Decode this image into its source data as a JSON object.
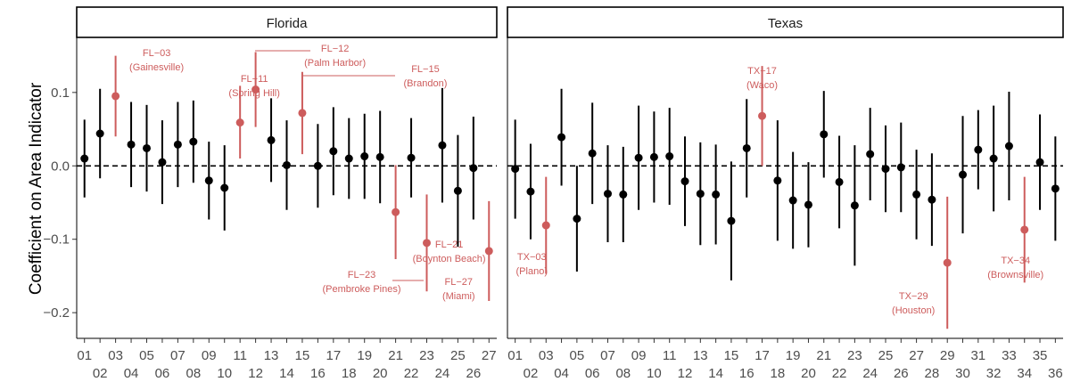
{
  "chart_data": {
    "type": "scatter",
    "ylabel": "Coefficient on Area Indicator",
    "xlabel": "",
    "ylim": [
      -0.235,
      0.175
    ],
    "y_ticks": [
      {
        "value": 0.1,
        "label": "0.1"
      },
      {
        "value": 0.0,
        "label": "0.0"
      },
      {
        "value": -0.1,
        "label": "-0.1"
      },
      {
        "value": -0.2,
        "label": "-0.2"
      }
    ],
    "reference_line": 0,
    "highlight_color": "#cd5c5c",
    "default_color": "#000000",
    "panels": [
      {
        "name": "Florida",
        "xlim": [
          0.5,
          27.5
        ],
        "points": [
          {
            "district": "01",
            "x": 1,
            "estimate": 0.01,
            "lower": -0.043,
            "upper": 0.063,
            "highlight": false
          },
          {
            "district": "02",
            "x": 2,
            "estimate": 0.044,
            "lower": -0.017,
            "upper": 0.105,
            "highlight": false
          },
          {
            "district": "03",
            "x": 3,
            "estimate": 0.095,
            "lower": 0.04,
            "upper": 0.15,
            "highlight": true,
            "label_lines": [
              "FL−03",
              "(Gainesville)"
            ]
          },
          {
            "district": "04",
            "x": 4,
            "estimate": 0.029,
            "lower": -0.029,
            "upper": 0.087,
            "highlight": false
          },
          {
            "district": "05",
            "x": 5,
            "estimate": 0.024,
            "lower": -0.035,
            "upper": 0.083,
            "highlight": false
          },
          {
            "district": "06",
            "x": 6,
            "estimate": 0.005,
            "lower": -0.052,
            "upper": 0.062,
            "highlight": false
          },
          {
            "district": "07",
            "x": 7,
            "estimate": 0.029,
            "lower": -0.029,
            "upper": 0.087,
            "highlight": false
          },
          {
            "district": "08",
            "x": 8,
            "estimate": 0.033,
            "lower": -0.023,
            "upper": 0.089,
            "highlight": false
          },
          {
            "district": "09",
            "x": 9,
            "estimate": -0.02,
            "lower": -0.073,
            "upper": 0.033,
            "highlight": false
          },
          {
            "district": "10",
            "x": 10,
            "estimate": -0.03,
            "lower": -0.088,
            "upper": 0.028,
            "highlight": false
          },
          {
            "district": "11",
            "x": 11,
            "estimate": 0.059,
            "lower": 0.01,
            "upper": 0.109,
            "highlight": true,
            "label_lines": [
              "FL−11",
              "(Spring Hill)"
            ]
          },
          {
            "district": "12",
            "x": 12,
            "estimate": 0.104,
            "lower": 0.053,
            "upper": 0.155,
            "highlight": true,
            "label_lines": [
              "FL−12",
              "(Palm Harbor)"
            ]
          },
          {
            "district": "13",
            "x": 13,
            "estimate": 0.035,
            "lower": -0.022,
            "upper": 0.092,
            "highlight": false
          },
          {
            "district": "14",
            "x": 14,
            "estimate": 0.001,
            "lower": -0.06,
            "upper": 0.062,
            "highlight": false
          },
          {
            "district": "15",
            "x": 15,
            "estimate": 0.072,
            "lower": 0.016,
            "upper": 0.128,
            "highlight": true,
            "label_lines": [
              "FL−15",
              "(Brandon)"
            ]
          },
          {
            "district": "16",
            "x": 16,
            "estimate": 0.0,
            "lower": -0.057,
            "upper": 0.057,
            "highlight": false
          },
          {
            "district": "17",
            "x": 17,
            "estimate": 0.02,
            "lower": -0.04,
            "upper": 0.08,
            "highlight": false
          },
          {
            "district": "18",
            "x": 18,
            "estimate": 0.01,
            "lower": -0.045,
            "upper": 0.065,
            "highlight": false
          },
          {
            "district": "19",
            "x": 19,
            "estimate": 0.013,
            "lower": -0.045,
            "upper": 0.071,
            "highlight": false
          },
          {
            "district": "20",
            "x": 20,
            "estimate": 0.012,
            "lower": -0.051,
            "upper": 0.075,
            "highlight": false
          },
          {
            "district": "21",
            "x": 21,
            "estimate": -0.063,
            "lower": -0.127,
            "upper": 0.001,
            "highlight": true,
            "label_lines": [
              "FL−21",
              "(Boynton Beach)"
            ]
          },
          {
            "district": "22",
            "x": 22,
            "estimate": 0.011,
            "lower": -0.043,
            "upper": 0.065,
            "highlight": false
          },
          {
            "district": "23",
            "x": 23,
            "estimate": -0.105,
            "lower": -0.171,
            "upper": -0.039,
            "highlight": true,
            "label_lines": [
              "FL−23",
              "(Pembroke Pines)"
            ]
          },
          {
            "district": "24",
            "x": 24,
            "estimate": 0.028,
            "lower": -0.05,
            "upper": 0.106,
            "highlight": false
          },
          {
            "district": "25",
            "x": 25,
            "estimate": -0.034,
            "lower": -0.11,
            "upper": 0.042,
            "highlight": false
          },
          {
            "district": "26",
            "x": 26,
            "estimate": -0.003,
            "lower": -0.073,
            "upper": 0.067,
            "highlight": false
          },
          {
            "district": "27",
            "x": 27,
            "estimate": -0.116,
            "lower": -0.184,
            "upper": -0.048,
            "highlight": true,
            "label_lines": [
              "FL−27",
              "(Miami)"
            ]
          }
        ]
      },
      {
        "name": "Texas",
        "xlim": [
          0.5,
          36.5
        ],
        "points": [
          {
            "district": "01",
            "x": 1,
            "estimate": -0.004,
            "lower": -0.072,
            "upper": 0.063,
            "highlight": false
          },
          {
            "district": "02",
            "x": 2,
            "estimate": -0.035,
            "lower": -0.1,
            "upper": 0.03,
            "highlight": false
          },
          {
            "district": "03",
            "x": 3,
            "estimate": -0.081,
            "lower": -0.147,
            "upper": -0.015,
            "highlight": true,
            "label_lines": [
              "TX−03",
              "(Plano)"
            ]
          },
          {
            "district": "04",
            "x": 4,
            "estimate": 0.039,
            "lower": -0.027,
            "upper": 0.105,
            "highlight": false
          },
          {
            "district": "05",
            "x": 5,
            "estimate": -0.072,
            "lower": -0.144,
            "upper": 0.0,
            "highlight": false
          },
          {
            "district": "06",
            "x": 6,
            "estimate": 0.017,
            "lower": -0.052,
            "upper": 0.086,
            "highlight": false
          },
          {
            "district": "07",
            "x": 7,
            "estimate": -0.038,
            "lower": -0.104,
            "upper": 0.028,
            "highlight": false
          },
          {
            "district": "08",
            "x": 8,
            "estimate": -0.039,
            "lower": -0.104,
            "upper": 0.026,
            "highlight": false
          },
          {
            "district": "09",
            "x": 9,
            "estimate": 0.011,
            "lower": -0.06,
            "upper": 0.082,
            "highlight": false
          },
          {
            "district": "10",
            "x": 10,
            "estimate": 0.012,
            "lower": -0.05,
            "upper": 0.074,
            "highlight": false
          },
          {
            "district": "11",
            "x": 11,
            "estimate": 0.013,
            "lower": -0.053,
            "upper": 0.079,
            "highlight": false
          },
          {
            "district": "12",
            "x": 12,
            "estimate": -0.021,
            "lower": -0.082,
            "upper": 0.04,
            "highlight": false
          },
          {
            "district": "13",
            "x": 13,
            "estimate": -0.038,
            "lower": -0.108,
            "upper": 0.032,
            "highlight": false
          },
          {
            "district": "14",
            "x": 14,
            "estimate": -0.039,
            "lower": -0.107,
            "upper": 0.029,
            "highlight": false
          },
          {
            "district": "15",
            "x": 15,
            "estimate": -0.075,
            "lower": -0.156,
            "upper": 0.006,
            "highlight": false
          },
          {
            "district": "16",
            "x": 16,
            "estimate": 0.024,
            "lower": -0.043,
            "upper": 0.091,
            "highlight": false
          },
          {
            "district": "17",
            "x": 17,
            "estimate": 0.068,
            "lower": 0.0,
            "upper": 0.136,
            "highlight": true,
            "label_lines": [
              "TX−17",
              "(Waco)"
            ]
          },
          {
            "district": "18",
            "x": 18,
            "estimate": -0.02,
            "lower": -0.102,
            "upper": 0.062,
            "highlight": false
          },
          {
            "district": "19",
            "x": 19,
            "estimate": -0.047,
            "lower": -0.113,
            "upper": 0.019,
            "highlight": false
          },
          {
            "district": "20",
            "x": 20,
            "estimate": -0.053,
            "lower": -0.111,
            "upper": 0.005,
            "highlight": false
          },
          {
            "district": "21",
            "x": 21,
            "estimate": 0.043,
            "lower": -0.016,
            "upper": 0.102,
            "highlight": false
          },
          {
            "district": "22",
            "x": 22,
            "estimate": -0.022,
            "lower": -0.085,
            "upper": 0.041,
            "highlight": false
          },
          {
            "district": "23",
            "x": 23,
            "estimate": -0.054,
            "lower": -0.136,
            "upper": 0.028,
            "highlight": false
          },
          {
            "district": "24",
            "x": 24,
            "estimate": 0.016,
            "lower": -0.047,
            "upper": 0.079,
            "highlight": false
          },
          {
            "district": "25",
            "x": 25,
            "estimate": -0.004,
            "lower": -0.063,
            "upper": 0.055,
            "highlight": false
          },
          {
            "district": "26",
            "x": 26,
            "estimate": -0.002,
            "lower": -0.063,
            "upper": 0.059,
            "highlight": false
          },
          {
            "district": "27",
            "x": 27,
            "estimate": -0.039,
            "lower": -0.1,
            "upper": 0.022,
            "highlight": false
          },
          {
            "district": "28",
            "x": 28,
            "estimate": -0.046,
            "lower": -0.109,
            "upper": 0.017,
            "highlight": false
          },
          {
            "district": "29",
            "x": 29,
            "estimate": -0.132,
            "lower": -0.222,
            "upper": -0.042,
            "highlight": true,
            "label_lines": [
              "TX−29",
              "(Houston)"
            ]
          },
          {
            "district": "30",
            "x": 30,
            "estimate": -0.012,
            "lower": -0.092,
            "upper": 0.068,
            "highlight": false
          },
          {
            "district": "31",
            "x": 31,
            "estimate": 0.022,
            "lower": -0.032,
            "upper": 0.076,
            "highlight": false
          },
          {
            "district": "32",
            "x": 32,
            "estimate": 0.01,
            "lower": -0.062,
            "upper": 0.082,
            "highlight": false
          },
          {
            "district": "33",
            "x": 33,
            "estimate": 0.027,
            "lower": -0.047,
            "upper": 0.101,
            "highlight": false
          },
          {
            "district": "34",
            "x": 34,
            "estimate": -0.087,
            "lower": -0.159,
            "upper": -0.015,
            "highlight": true,
            "label_lines": [
              "TX−34",
              "(Brownsville)"
            ]
          },
          {
            "district": "35",
            "x": 35,
            "estimate": 0.005,
            "lower": -0.06,
            "upper": 0.07,
            "highlight": false
          },
          {
            "district": "36",
            "x": 36,
            "estimate": -0.031,
            "lower": -0.102,
            "upper": 0.04,
            "highlight": false
          }
        ]
      }
    ]
  }
}
